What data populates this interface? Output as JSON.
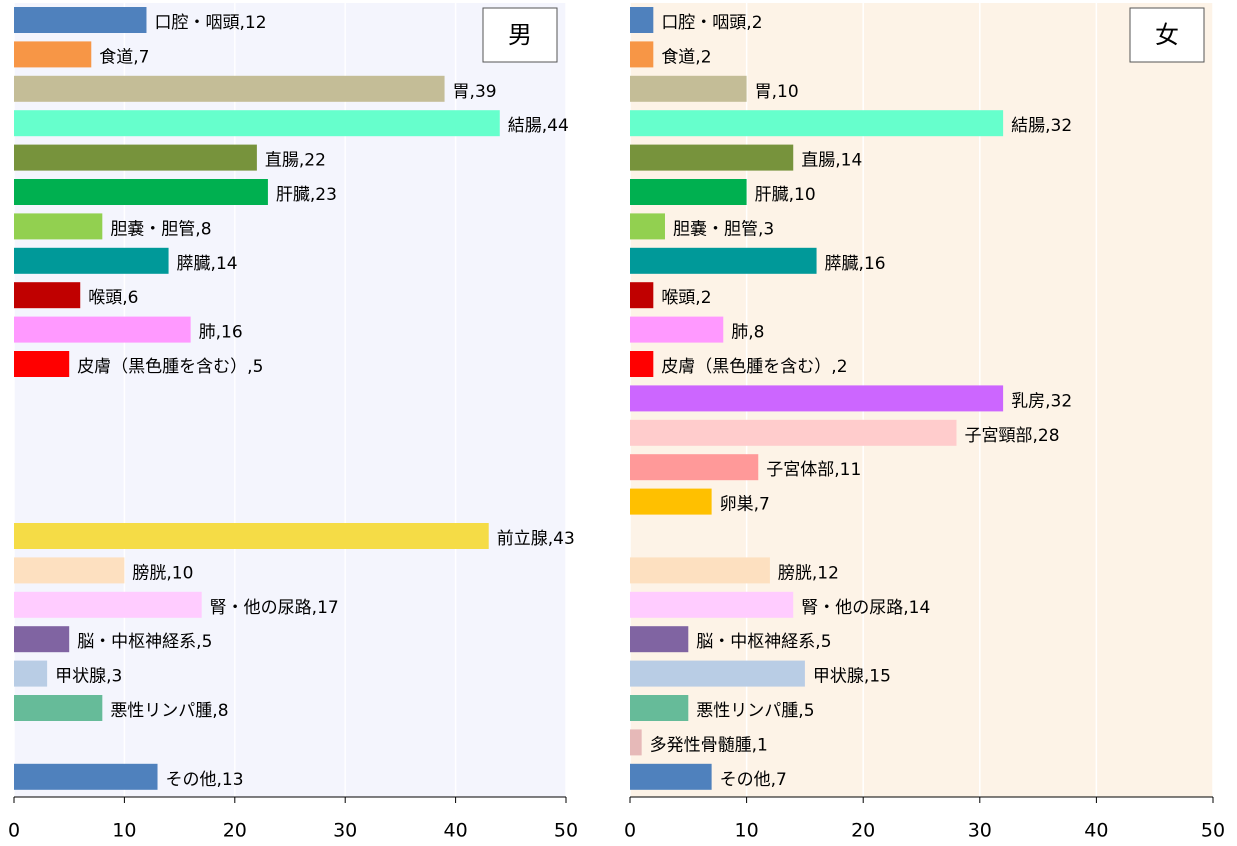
{
  "chart_data": [
    {
      "type": "bar",
      "orientation": "horizontal",
      "title": "男",
      "background": "#f4f5fd",
      "values": [
        12,
        7,
        39,
        44,
        22,
        23,
        8,
        14,
        6,
        16,
        5,
        null,
        null,
        null,
        null,
        43,
        10,
        17,
        5,
        3,
        8,
        null,
        13
      ],
      "value_labels": [
        "口腔・咽頭,12",
        "食道,7",
        "胃,39",
        "結腸,44",
        "直腸,22",
        "肝臓,23",
        "胆嚢・胆管,8",
        "膵臓,14",
        "喉頭,6",
        "肺,16",
        "皮膚（黒色腫を含む）,5",
        null,
        null,
        null,
        null,
        "前立腺,43",
        "膀胱,10",
        "腎・他の尿路,17",
        "脳・中枢神経系,5",
        "甲状腺,3",
        "悪性リンパ腫,8",
        null,
        "その他,13"
      ],
      "colors": [
        "#4f81bd",
        "#f79646",
        "#c4bd97",
        "#66ffcc",
        "#77933c",
        "#00b050",
        "#92d050",
        "#009999",
        "#c00000",
        "#ff99ff",
        "#ff0000",
        null,
        null,
        null,
        null,
        "#f5dc46",
        "#fde0c0",
        "#ffccff",
        "#8064a2",
        "#b9cde5",
        "#66bb99",
        null,
        "#4f81bd"
      ],
      "xlim": [
        0,
        50
      ],
      "xticks": [
        0,
        10,
        20,
        30,
        40,
        50
      ],
      "grid": true
    },
    {
      "type": "bar",
      "orientation": "horizontal",
      "title": "女",
      "background": "#fdf3e7",
      "values": [
        2,
        2,
        10,
        32,
        14,
        10,
        3,
        16,
        2,
        8,
        2,
        32,
        28,
        11,
        7,
        null,
        12,
        14,
        5,
        15,
        5,
        1,
        7
      ],
      "value_labels": [
        "口腔・咽頭,2",
        "食道,2",
        "胃,10",
        "結腸,32",
        "直腸,14",
        "肝臓,10",
        "胆嚢・胆管,3",
        "膵臓,16",
        "喉頭,2",
        "肺,8",
        "皮膚（黒色腫を含む）,2",
        "乳房,32",
        "子宮頸部,28",
        "子宮体部,11",
        "卵巣,7",
        null,
        "膀胱,12",
        "腎・他の尿路,14",
        "脳・中枢神経系,5",
        "甲状腺,15",
        "悪性リンパ腫,5",
        "多発性骨髄腫,1",
        "その他,7"
      ],
      "colors": [
        "#4f81bd",
        "#f79646",
        "#c4bd97",
        "#66ffcc",
        "#77933c",
        "#00b050",
        "#92d050",
        "#009999",
        "#c00000",
        "#ff99ff",
        "#ff0000",
        "#cc66ff",
        "#ffcccc",
        "#ff9999",
        "#ffc000",
        null,
        "#fde0c0",
        "#ffccff",
        "#8064a2",
        "#b9cde5",
        "#66bb99",
        "#e6b9b8",
        "#4f81bd"
      ],
      "xlim": [
        0,
        50
      ],
      "xticks": [
        0,
        10,
        20,
        30,
        40,
        50
      ],
      "grid": true
    }
  ]
}
